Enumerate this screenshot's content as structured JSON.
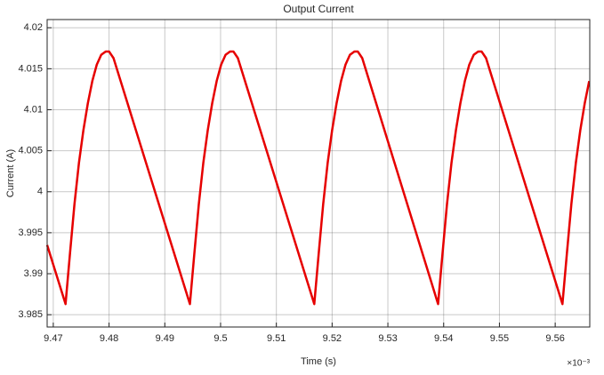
{
  "chart_data": {
    "type": "line",
    "title": "Output Current",
    "x_label": "Time (s)",
    "y_label": "Current (A)",
    "x_multiplier": "×10⁻³",
    "color": "#e60000",
    "grid": true,
    "xlim": [
      9.4689,
      9.5662
    ],
    "ylim": [
      3.9835,
      4.021
    ],
    "xticks": [
      9.47,
      9.48,
      9.49,
      9.5,
      9.51,
      9.52,
      9.53,
      9.54,
      9.55,
      9.56
    ],
    "yticks": [
      3.985,
      3.99,
      3.995,
      4,
      4.005,
      4.01,
      4.015,
      4.02
    ],
    "x": [
      9.4689,
      9.4722,
      9.473,
      9.4738,
      9.4746,
      9.4754,
      9.4762,
      9.477,
      9.4778,
      9.4786,
      9.4794,
      9.48,
      9.4808,
      9.4945,
      9.4953,
      9.4961,
      9.4969,
      9.4977,
      9.4985,
      9.4993,
      9.5001,
      9.5009,
      9.5017,
      9.5023,
      9.5031,
      9.5168,
      9.5176,
      9.5184,
      9.5192,
      9.52,
      9.5208,
      9.5216,
      9.5224,
      9.5232,
      9.524,
      9.5246,
      9.5254,
      9.539,
      9.5398,
      9.5406,
      9.5414,
      9.5422,
      9.543,
      9.5438,
      9.5446,
      9.5454,
      9.5462,
      9.5468,
      9.5476,
      9.5613,
      9.5621,
      9.5629,
      9.5637,
      9.5645,
      9.5653,
      9.5661
    ],
    "values": [
      3.9935,
      3.9863,
      3.9925,
      3.9985,
      4.0035,
      4.0075,
      4.0108,
      4.0135,
      4.0155,
      4.0167,
      4.0171,
      4.0171,
      4.0163,
      3.9863,
      3.9925,
      3.9985,
      4.0035,
      4.0075,
      4.0108,
      4.0135,
      4.0155,
      4.0167,
      4.0171,
      4.0171,
      4.0163,
      3.9863,
      3.9925,
      3.9985,
      4.0035,
      4.0075,
      4.0108,
      4.0135,
      4.0155,
      4.0167,
      4.0171,
      4.0171,
      4.0163,
      3.9863,
      3.9925,
      3.9985,
      4.0035,
      4.0075,
      4.0108,
      4.0135,
      4.0155,
      4.0167,
      4.0171,
      4.0171,
      4.0163,
      3.9863,
      3.9925,
      3.9985,
      4.0035,
      4.0075,
      4.0108,
      4.0135
    ]
  }
}
